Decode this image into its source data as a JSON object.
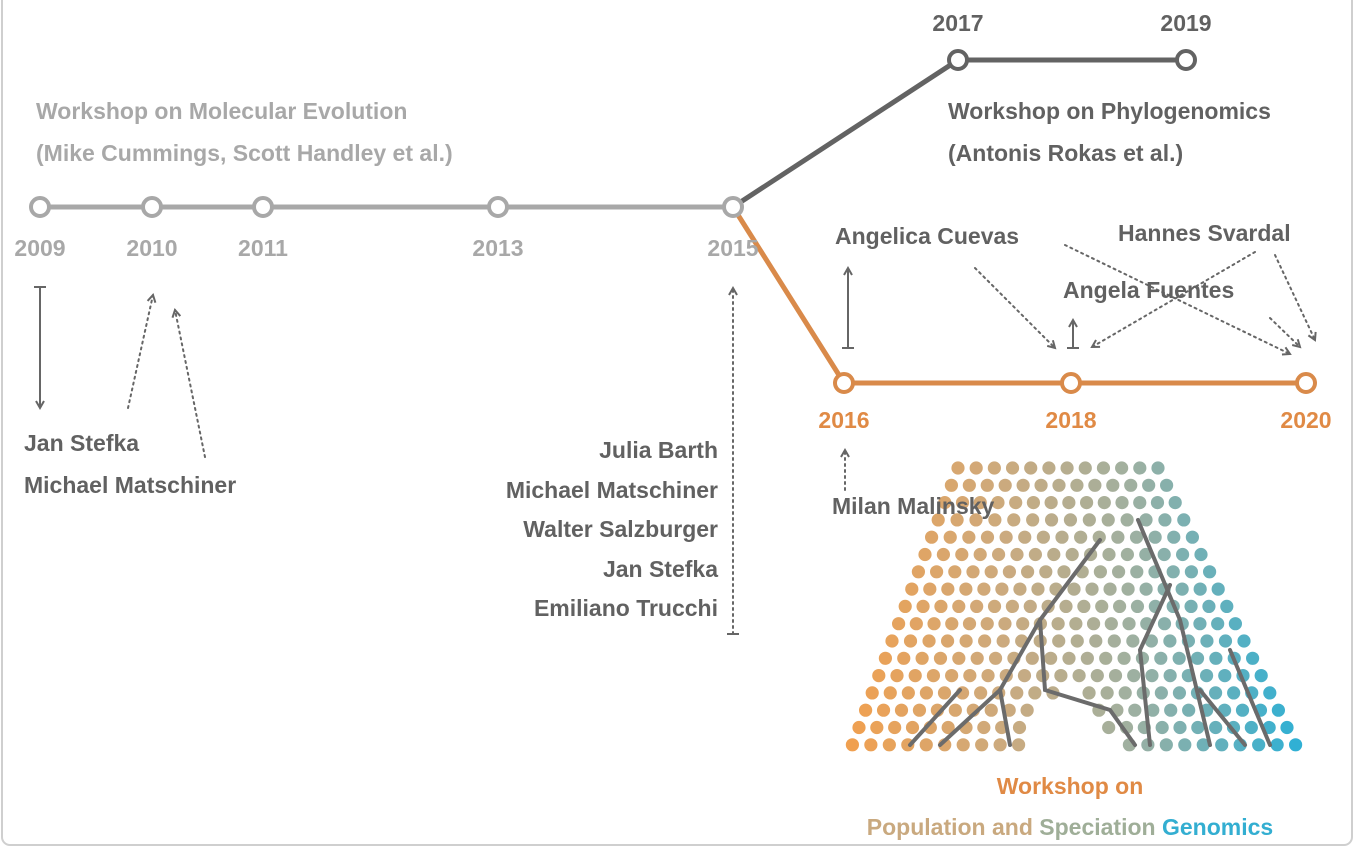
{
  "timeline": {
    "early_years": [
      "2009",
      "2010",
      "2011",
      "2013",
      "2015"
    ],
    "phylogenomics_years": [
      "2017",
      "2019"
    ],
    "speciation_years": [
      "2016",
      "2018",
      "2020"
    ]
  },
  "workshops": {
    "molecular_evolution": {
      "title": "Workshop on Molecular Evolution",
      "organizers": "(Mike Cummings, Scott Handley et al.)"
    },
    "phylogenomics": {
      "title": "Workshop on Phylogenomics",
      "organizers": "(Antonis Rokas et al.)"
    },
    "speciation": {
      "title": "Workshop on",
      "population": "Population and",
      "speciation": "Speciation",
      "genomics": "Genomics"
    }
  },
  "people": {
    "group_2010": [
      "Jan Stefka",
      "Michael Matschiner"
    ],
    "group_2015": [
      "Julia Barth",
      "Michael Matschiner",
      "Walter Salzburger",
      "Jan Stefka",
      "Emiliano Trucchi"
    ],
    "angelica": "Angelica Cuevas",
    "hannes": "Hannes Svardal",
    "angela": "Angela Fuentes",
    "milan": "Milan Malinsky"
  }
}
